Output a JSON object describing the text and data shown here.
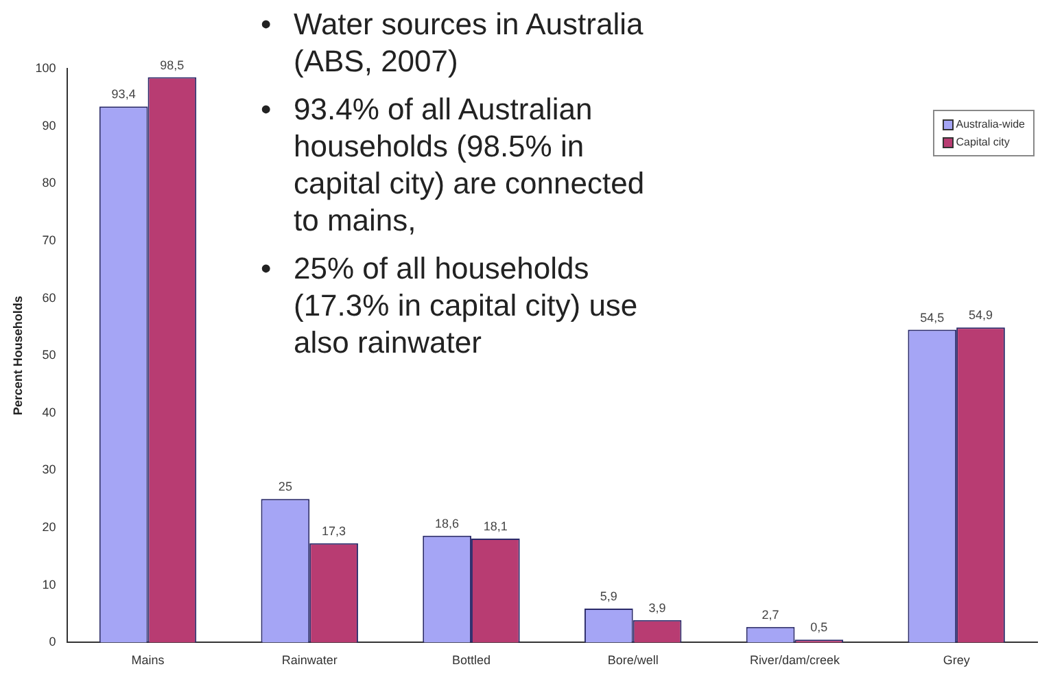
{
  "chart_data": {
    "type": "bar",
    "ylabel": "Percent Households",
    "categories": [
      "Mains",
      "Rainwater",
      "Bottled",
      "Bore/well",
      "River/dam/creek",
      "Grey"
    ],
    "series": [
      {
        "name": "Australia-wide",
        "color": "#a5a5f5",
        "values": [
          93.4,
          25,
          18.6,
          5.9,
          2.7,
          54.5
        ],
        "value_labels": [
          "93,4",
          "25",
          "18,6",
          "5,9",
          "2,7",
          "54,5"
        ]
      },
      {
        "name": "Capital city",
        "color": "#b83c72",
        "values": [
          98.5,
          17.3,
          18.1,
          3.9,
          0.5,
          54.9
        ],
        "value_labels": [
          "98,5",
          "17,3",
          "18,1",
          "3,9",
          "0,5",
          "54,9"
        ]
      }
    ],
    "ylim": [
      0,
      100
    ],
    "yticks": [
      0,
      10,
      20,
      30,
      40,
      50,
      60,
      70,
      80,
      90,
      100
    ],
    "grid": false,
    "legend": "top right",
    "annotations": [
      "•\tWater sources in Australia (ABS, 2007)",
      "•\t93.4% of all Australian households (98.5% in capital city) are connected to mains,",
      "•\t25% of all households (17.3% in capital city) use also rainwater"
    ]
  }
}
